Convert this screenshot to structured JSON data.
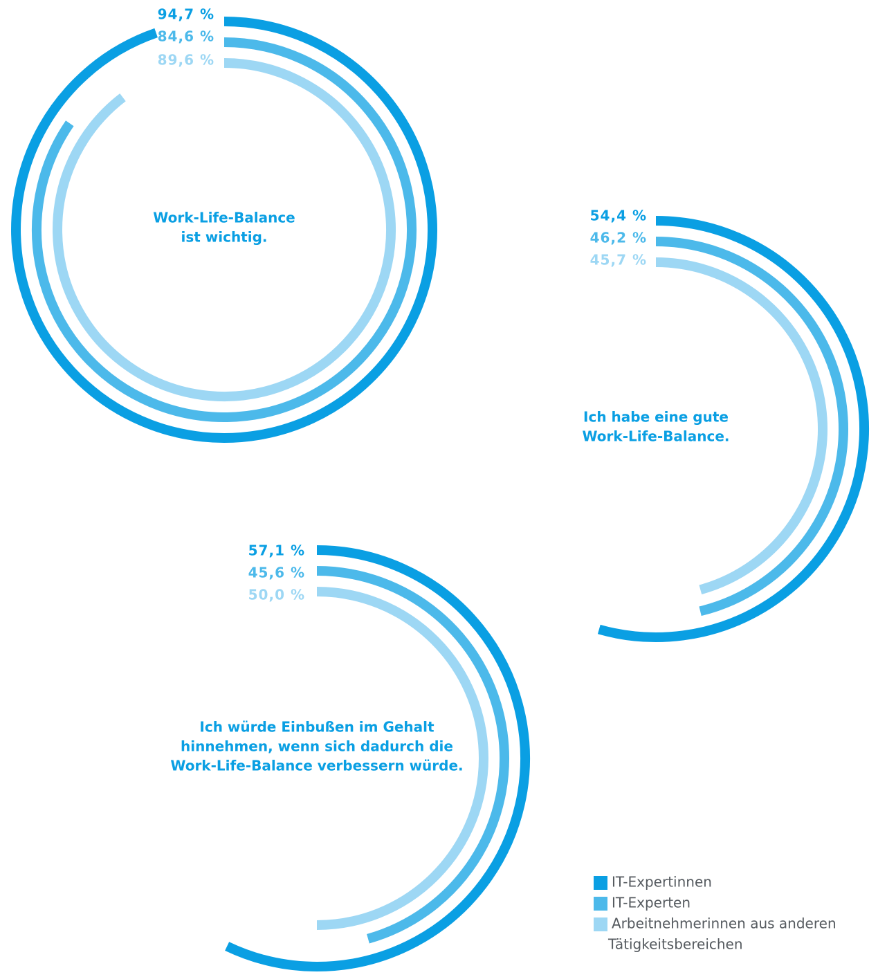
{
  "colors": {
    "IT-Expertinnen": "#0a9fe3",
    "IT-Experten": "#4cb9ea",
    "Arbeitnehmerinnen aus anderen Tätigkeitsbereichen": "#9dd7f4",
    "title": "#0a9fe3",
    "legend_text": "#555a5f"
  },
  "chart_data": [
    {
      "type": "radial-bar",
      "title_lines": [
        "Work-Life-Balance",
        "ist wichtig."
      ],
      "series": [
        {
          "name": "IT-Expertinnen",
          "value": 94.7,
          "label": "94,7 %"
        },
        {
          "name": "IT-Experten",
          "value": 84.6,
          "label": "84,6 %"
        },
        {
          "name": "Arbeitnehmerinnen aus anderen Tätigkeitsbereichen",
          "value": 89.6,
          "label": "89,6 %"
        }
      ]
    },
    {
      "type": "radial-bar",
      "title_lines": [
        "Ich habe eine gute",
        "Work-Life-Balance."
      ],
      "series": [
        {
          "name": "IT-Expertinnen",
          "value": 54.4,
          "label": "54,4 %"
        },
        {
          "name": "IT-Experten",
          "value": 46.2,
          "label": "46,2 %"
        },
        {
          "name": "Arbeitnehmerinnen aus anderen Tätigkeitsbereichen",
          "value": 45.7,
          "label": "45,7 %"
        }
      ]
    },
    {
      "type": "radial-bar",
      "title_lines": [
        "Ich würde Einbußen im Gehalt",
        "hinnehmen, wenn sich dadurch die",
        "Work-Life-Balance verbessern würde."
      ],
      "series": [
        {
          "name": "IT-Expertinnen",
          "value": 57.1,
          "label": "57,1 %"
        },
        {
          "name": "IT-Experten",
          "value": 45.6,
          "label": "45,6 %"
        },
        {
          "name": "Arbeitnehmerinnen aus anderen Tätigkeitsbereichen",
          "value": 50.0,
          "label": "50,0 %"
        }
      ]
    }
  ],
  "legend": {
    "entries": [
      {
        "label": "IT-Expertinnen"
      },
      {
        "label": "IT-Experten"
      },
      {
        "label_lines": [
          "Arbeitnehmerinnen aus anderen",
          "Tätigkeitsbereichen"
        ]
      }
    ]
  }
}
